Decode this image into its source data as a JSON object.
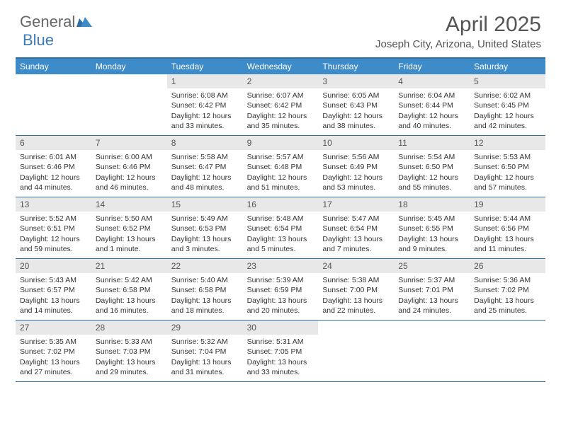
{
  "logo": {
    "text1": "General",
    "text2": "Blue"
  },
  "title": "April 2025",
  "location": "Joseph City, Arizona, United States",
  "dow": [
    "Sunday",
    "Monday",
    "Tuesday",
    "Wednesday",
    "Thursday",
    "Friday",
    "Saturday"
  ],
  "colors": {
    "header_bar": "#3d8bc8",
    "rule": "#2f6fa8",
    "daynum_bg": "#e8e8e8",
    "text": "#333333",
    "logo_blue": "#3d7ab8"
  },
  "weeks": [
    [
      null,
      null,
      {
        "n": "1",
        "sr": "6:08 AM",
        "ss": "6:42 PM",
        "dl": "12 hours and 33 minutes."
      },
      {
        "n": "2",
        "sr": "6:07 AM",
        "ss": "6:42 PM",
        "dl": "12 hours and 35 minutes."
      },
      {
        "n": "3",
        "sr": "6:05 AM",
        "ss": "6:43 PM",
        "dl": "12 hours and 38 minutes."
      },
      {
        "n": "4",
        "sr": "6:04 AM",
        "ss": "6:44 PM",
        "dl": "12 hours and 40 minutes."
      },
      {
        "n": "5",
        "sr": "6:02 AM",
        "ss": "6:45 PM",
        "dl": "12 hours and 42 minutes."
      }
    ],
    [
      {
        "n": "6",
        "sr": "6:01 AM",
        "ss": "6:46 PM",
        "dl": "12 hours and 44 minutes."
      },
      {
        "n": "7",
        "sr": "6:00 AM",
        "ss": "6:46 PM",
        "dl": "12 hours and 46 minutes."
      },
      {
        "n": "8",
        "sr": "5:58 AM",
        "ss": "6:47 PM",
        "dl": "12 hours and 48 minutes."
      },
      {
        "n": "9",
        "sr": "5:57 AM",
        "ss": "6:48 PM",
        "dl": "12 hours and 51 minutes."
      },
      {
        "n": "10",
        "sr": "5:56 AM",
        "ss": "6:49 PM",
        "dl": "12 hours and 53 minutes."
      },
      {
        "n": "11",
        "sr": "5:54 AM",
        "ss": "6:50 PM",
        "dl": "12 hours and 55 minutes."
      },
      {
        "n": "12",
        "sr": "5:53 AM",
        "ss": "6:50 PM",
        "dl": "12 hours and 57 minutes."
      }
    ],
    [
      {
        "n": "13",
        "sr": "5:52 AM",
        "ss": "6:51 PM",
        "dl": "12 hours and 59 minutes."
      },
      {
        "n": "14",
        "sr": "5:50 AM",
        "ss": "6:52 PM",
        "dl": "13 hours and 1 minute."
      },
      {
        "n": "15",
        "sr": "5:49 AM",
        "ss": "6:53 PM",
        "dl": "13 hours and 3 minutes."
      },
      {
        "n": "16",
        "sr": "5:48 AM",
        "ss": "6:54 PM",
        "dl": "13 hours and 5 minutes."
      },
      {
        "n": "17",
        "sr": "5:47 AM",
        "ss": "6:54 PM",
        "dl": "13 hours and 7 minutes."
      },
      {
        "n": "18",
        "sr": "5:45 AM",
        "ss": "6:55 PM",
        "dl": "13 hours and 9 minutes."
      },
      {
        "n": "19",
        "sr": "5:44 AM",
        "ss": "6:56 PM",
        "dl": "13 hours and 11 minutes."
      }
    ],
    [
      {
        "n": "20",
        "sr": "5:43 AM",
        "ss": "6:57 PM",
        "dl": "13 hours and 14 minutes."
      },
      {
        "n": "21",
        "sr": "5:42 AM",
        "ss": "6:58 PM",
        "dl": "13 hours and 16 minutes."
      },
      {
        "n": "22",
        "sr": "5:40 AM",
        "ss": "6:58 PM",
        "dl": "13 hours and 18 minutes."
      },
      {
        "n": "23",
        "sr": "5:39 AM",
        "ss": "6:59 PM",
        "dl": "13 hours and 20 minutes."
      },
      {
        "n": "24",
        "sr": "5:38 AM",
        "ss": "7:00 PM",
        "dl": "13 hours and 22 minutes."
      },
      {
        "n": "25",
        "sr": "5:37 AM",
        "ss": "7:01 PM",
        "dl": "13 hours and 24 minutes."
      },
      {
        "n": "26",
        "sr": "5:36 AM",
        "ss": "7:02 PM",
        "dl": "13 hours and 25 minutes."
      }
    ],
    [
      {
        "n": "27",
        "sr": "5:35 AM",
        "ss": "7:02 PM",
        "dl": "13 hours and 27 minutes."
      },
      {
        "n": "28",
        "sr": "5:33 AM",
        "ss": "7:03 PM",
        "dl": "13 hours and 29 minutes."
      },
      {
        "n": "29",
        "sr": "5:32 AM",
        "ss": "7:04 PM",
        "dl": "13 hours and 31 minutes."
      },
      {
        "n": "30",
        "sr": "5:31 AM",
        "ss": "7:05 PM",
        "dl": "13 hours and 33 minutes."
      },
      null,
      null,
      null
    ]
  ],
  "labels": {
    "sunrise": "Sunrise:",
    "sunset": "Sunset:",
    "daylight": "Daylight:"
  }
}
